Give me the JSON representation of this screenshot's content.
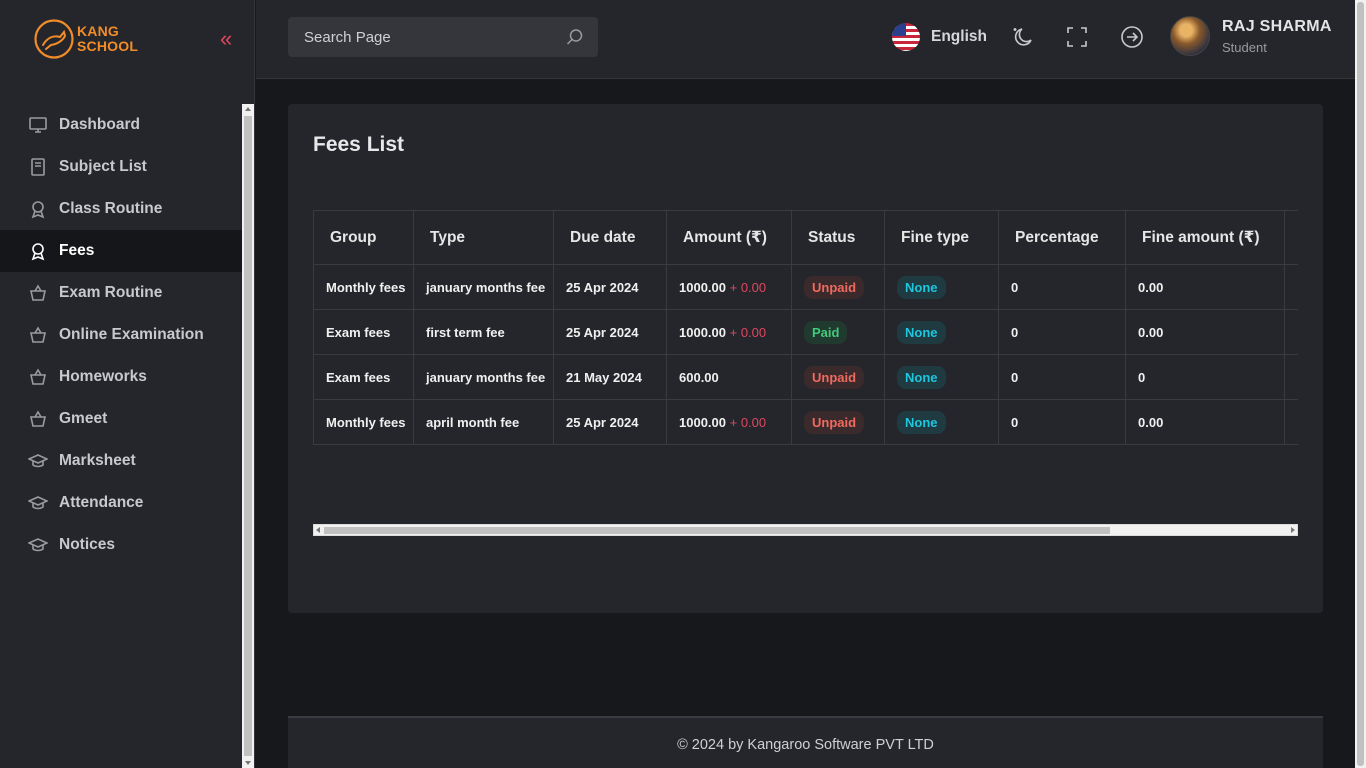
{
  "brand": {
    "line1": "KANG",
    "line2": "SCHOOL"
  },
  "sidebar": {
    "collapse_icon": "double-chevron-left-icon",
    "items": [
      {
        "label": "Dashboard",
        "icon": "monitor-icon",
        "active": false
      },
      {
        "label": "Subject List",
        "icon": "book-icon",
        "active": false
      },
      {
        "label": "Class Routine",
        "icon": "award-icon",
        "active": false
      },
      {
        "label": "Fees",
        "icon": "award-icon",
        "active": true
      },
      {
        "label": "Exam Routine",
        "icon": "basket-icon",
        "active": false
      },
      {
        "label": "Online Examination",
        "icon": "basket-icon",
        "active": false
      },
      {
        "label": "Homeworks",
        "icon": "basket-icon",
        "active": false
      },
      {
        "label": "Gmeet",
        "icon": "basket-icon",
        "active": false
      },
      {
        "label": "Marksheet",
        "icon": "graduation-cap-icon",
        "active": false
      },
      {
        "label": "Attendance",
        "icon": "graduation-cap-icon",
        "active": false
      },
      {
        "label": "Notices",
        "icon": "graduation-cap-icon",
        "active": false
      }
    ]
  },
  "header": {
    "search_placeholder": "Search Page",
    "language": "English",
    "user": {
      "name": "RAJ SHARMA",
      "role": "Student"
    }
  },
  "fees": {
    "title": "Fees List",
    "columns": [
      "Group",
      "Type",
      "Due date",
      "Amount (₹)",
      "Status",
      "Fine type",
      "Percentage",
      "Fine amount (₹)"
    ],
    "rows": [
      {
        "group": "Monthly fees",
        "type": "january months fee",
        "due": "25 Apr 2024",
        "amount": "1000.00",
        "amount_extra": "+ 0.00",
        "status": "Unpaid",
        "fine_type": "None",
        "percentage": "0",
        "fine_amount": "0.00"
      },
      {
        "group": "Exam fees",
        "type": "first term fee",
        "due": "25 Apr 2024",
        "amount": "1000.00",
        "amount_extra": "+ 0.00",
        "status": "Paid",
        "fine_type": "None",
        "percentage": "0",
        "fine_amount": "0.00"
      },
      {
        "group": "Exam fees",
        "type": "january months fee",
        "due": "21 May 2024",
        "amount": "600.00",
        "amount_extra": "",
        "status": "Unpaid",
        "fine_type": "None",
        "percentage": "0",
        "fine_amount": "0"
      },
      {
        "group": "Monthly fees",
        "type": "april month fee",
        "due": "25 Apr 2024",
        "amount": "1000.00",
        "amount_extra": "+ 0.00",
        "status": "Unpaid",
        "fine_type": "None",
        "percentage": "0",
        "fine_amount": "0.00"
      }
    ]
  },
  "footer": {
    "text": "© 2024 by Kangaroo Software PVT LTD"
  },
  "colors": {
    "accent": "#f28c28",
    "danger": "#e0465e",
    "paid": "#43c97a",
    "unpaid": "#f06b5f",
    "info": "#1ec6de"
  }
}
